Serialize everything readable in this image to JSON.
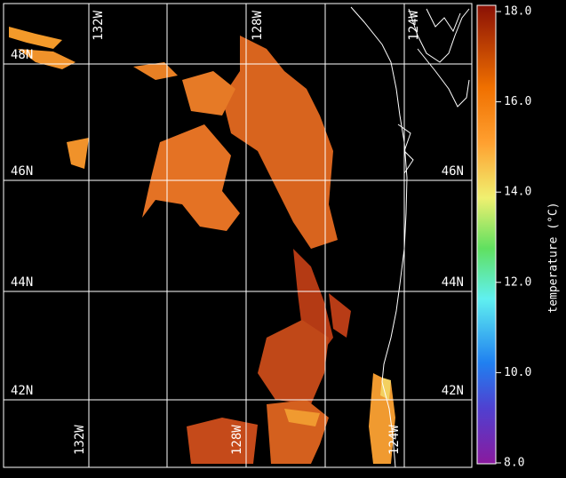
{
  "map": {
    "lat_labels": [
      "48N",
      "46N",
      "44N",
      "42N"
    ],
    "lon_labels": [
      "132W",
      "128W",
      "124W"
    ],
    "colorbar": {
      "label": "temperature (°C)",
      "range": [
        8,
        18
      ],
      "ticks": [
        {
          "value": 8,
          "label": "8.0"
        },
        {
          "value": 10,
          "label": "10.0"
        },
        {
          "value": 12,
          "label": "12.0"
        },
        {
          "value": 14,
          "label": "14.0"
        },
        {
          "value": 16,
          "label": "16.0"
        },
        {
          "value": 18,
          "label": "18.0"
        }
      ]
    }
  }
}
